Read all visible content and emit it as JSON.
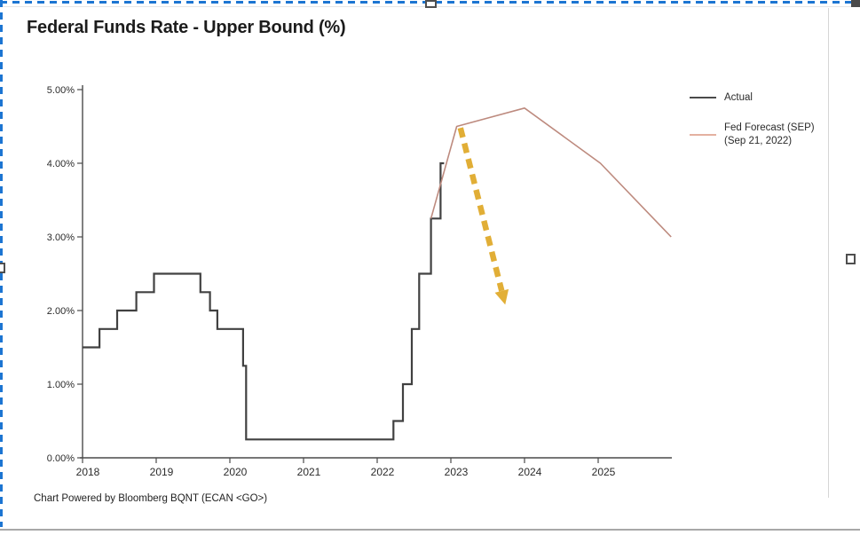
{
  "window": {
    "selection_border_color": "#1c75d2",
    "page_bottom_line_color": "#a8a8a8"
  },
  "chart": {
    "title": "Federal Funds Rate - Upper Bound (%)",
    "footer": "Chart Powered by Bloomberg BQNT (ECAN <GO>)",
    "legend": {
      "items": [
        {
          "label": "Actual",
          "sublabel": "",
          "color": "#4a4a4a"
        },
        {
          "label": "Fed Forecast (SEP)",
          "sublabel": "(Sep 21, 2022)",
          "color": "#e4b1a0"
        }
      ]
    }
  },
  "chart_data": {
    "type": "line",
    "title": "Federal Funds Rate - Upper Bound (%)",
    "xlabel": "",
    "ylabel": "",
    "xlim": [
      2018,
      2026
    ],
    "ylim": [
      0,
      5
    ],
    "grid": false,
    "legend_position": "right",
    "x_ticks": {
      "values": [
        2018,
        2019,
        2020,
        2021,
        2022,
        2023,
        2024,
        2025
      ],
      "labels": [
        "2018",
        "2019",
        "2020",
        "2021",
        "2022",
        "2023",
        "2024",
        "2025"
      ]
    },
    "y_ticks": {
      "values": [
        0,
        1,
        2,
        3,
        4,
        5
      ],
      "labels": [
        "0.00%",
        "1.00%",
        "2.00%",
        "3.00%",
        "4.00%",
        "5.00%"
      ]
    },
    "series": [
      {
        "name": "Actual",
        "type": "step",
        "color": "#414141",
        "width": 2.2,
        "points": [
          [
            2018.0,
            1.5
          ],
          [
            2018.23,
            1.75
          ],
          [
            2018.47,
            2.0
          ],
          [
            2018.73,
            2.25
          ],
          [
            2018.97,
            2.5
          ],
          [
            2019.6,
            2.25
          ],
          [
            2019.73,
            2.0
          ],
          [
            2019.83,
            1.75
          ],
          [
            2020.18,
            1.25
          ],
          [
            2020.22,
            0.25
          ],
          [
            2022.22,
            0.5
          ],
          [
            2022.35,
            1.0
          ],
          [
            2022.47,
            1.75
          ],
          [
            2022.57,
            2.5
          ],
          [
            2022.73,
            3.25
          ],
          [
            2022.86,
            4.0
          ]
        ]
      },
      {
        "name": "Fed Forecast (SEP) (Sep 21, 2022)",
        "type": "line",
        "color": "#bd8a7e",
        "width": 1.6,
        "points": [
          [
            2022.73,
            3.25
          ],
          [
            2023.08,
            4.5
          ],
          [
            2024.0,
            4.75
          ],
          [
            2025.03,
            4.0
          ],
          [
            2025.99,
            3.0
          ]
        ]
      }
    ],
    "annotations": [
      {
        "type": "arrow",
        "style": "dashed",
        "color": "#dfa826",
        "from": [
          2023.13,
          4.48
        ],
        "to": [
          2023.72,
          2.15
        ]
      }
    ]
  }
}
